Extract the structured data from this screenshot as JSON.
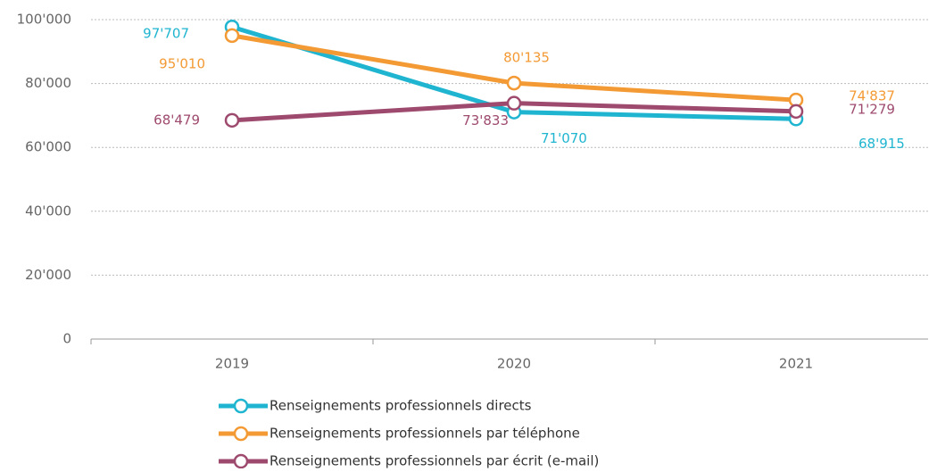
{
  "chart_data": {
    "type": "line",
    "categories": [
      "2019",
      "2020",
      "2021"
    ],
    "series": [
      {
        "name": "Renseignements professionnels directs",
        "color": "#1fb5d0",
        "values": [
          97707,
          71070,
          68915
        ],
        "value_labels": [
          "97'707",
          "71'070",
          "68'915"
        ]
      },
      {
        "name": "Renseignements professionnels par téléphone",
        "color": "#f39a34",
        "values": [
          95010,
          80135,
          74837
        ],
        "value_labels": [
          "95'010",
          "80'135",
          "74'837"
        ]
      },
      {
        "name": "Renseignements professionnels par écrit (e-mail)",
        "color": "#9e4a6e",
        "values": [
          68479,
          73833,
          71279
        ],
        "value_labels": [
          "68'479",
          "73'833",
          "71'279"
        ]
      }
    ],
    "ylim": [
      0,
      100000
    ],
    "yticks": [
      0,
      {
        "value": 20000,
        "label": "20'000"
      },
      {
        "value": 40000,
        "label": "40'000"
      },
      {
        "value": 60000,
        "label": "60'000"
      },
      {
        "value": 80000,
        "label": "80'000"
      },
      {
        "value": 100000,
        "label": "100'000"
      }
    ],
    "grid": true
  }
}
